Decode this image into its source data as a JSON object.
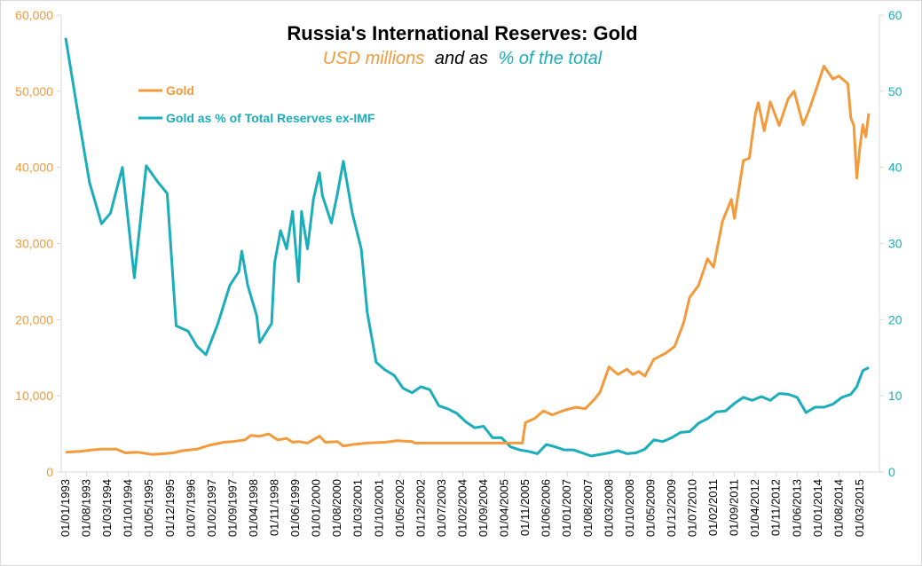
{
  "colors": {
    "gold": "#f39a3c",
    "pct": "#1aaebb",
    "axis": "#d9d9d9"
  },
  "chart_data": {
    "type": "line",
    "title": "Russia's International Reserves: Gold",
    "subtitle": {
      "part1": "USD millions",
      "part2": "and as",
      "part3": "% of the total"
    },
    "left_axis": {
      "min": 0,
      "max": 60000,
      "ticks": [
        "0",
        "10,000",
        "20,000",
        "30,000",
        "40,000",
        "50,000",
        "60,000"
      ]
    },
    "right_axis": {
      "min": 0,
      "max": 60,
      "ticks": [
        "0",
        "10",
        "20",
        "30",
        "40",
        "50",
        "60"
      ]
    },
    "x_axis": {
      "start": "1993-01",
      "end": "2015-06",
      "ticks": [
        "01/01/1993",
        "01/08/1993",
        "01/03/1994",
        "01/10/1994",
        "01/05/1995",
        "01/12/1995",
        "01/07/1996",
        "01/02/1997",
        "01/09/1997",
        "01/04/1998",
        "01/11/1998",
        "01/06/1999",
        "01/01/2000",
        "01/08/2000",
        "01/03/2001",
        "01/10/2001",
        "01/05/2002",
        "01/12/2002",
        "01/07/2003",
        "01/02/2004",
        "01/09/2004",
        "01/04/2005",
        "01/11/2005",
        "01/06/2006",
        "01/01/2007",
        "01/08/2007",
        "01/03/2008",
        "01/10/2008",
        "01/05/2009",
        "01/12/2009",
        "01/07/2010",
        "01/02/2011",
        "01/09/2011",
        "01/04/2012",
        "01/11/2012",
        "01/06/2013",
        "01/01/2014",
        "01/08/2014",
        "01/03/2015"
      ]
    },
    "legend": {
      "placement": "top-left"
    },
    "series": [
      {
        "name": "Gold",
        "axis": "left",
        "points": [
          [
            "1993-01",
            2600
          ],
          [
            "1993-06",
            2700
          ],
          [
            "1993-10",
            2900
          ],
          [
            "1994-01",
            3000
          ],
          [
            "1994-06",
            3000
          ],
          [
            "1994-09",
            2500
          ],
          [
            "1995-01",
            2600
          ],
          [
            "1995-06",
            2300
          ],
          [
            "1995-10",
            2400
          ],
          [
            "1996-01",
            2500
          ],
          [
            "1996-04",
            2800
          ],
          [
            "1996-09",
            3000
          ],
          [
            "1997-01",
            3500
          ],
          [
            "1997-06",
            3900
          ],
          [
            "1997-09",
            4000
          ],
          [
            "1998-01",
            4200
          ],
          [
            "1998-03",
            4800
          ],
          [
            "1998-06",
            4700
          ],
          [
            "1998-09",
            5000
          ],
          [
            "1998-12",
            4200
          ],
          [
            "1999-03",
            4400
          ],
          [
            "1999-05",
            3900
          ],
          [
            "1999-07",
            4000
          ],
          [
            "1999-10",
            3800
          ],
          [
            "2000-02",
            4700
          ],
          [
            "2000-04",
            3900
          ],
          [
            "2000-08",
            4000
          ],
          [
            "2000-10",
            3400
          ],
          [
            "2001-01",
            3600
          ],
          [
            "2001-06",
            3800
          ],
          [
            "2001-12",
            3900
          ],
          [
            "2002-04",
            4100
          ],
          [
            "2002-09",
            4000
          ],
          [
            "2002-10",
            3800
          ],
          [
            "2003-06",
            3800
          ],
          [
            "2004-06",
            3800
          ],
          [
            "2005-01",
            3800
          ],
          [
            "2005-09",
            3800
          ],
          [
            "2005-10",
            3800
          ],
          [
            "2005-11",
            6500
          ],
          [
            "2006-02",
            7000
          ],
          [
            "2006-05",
            8000
          ],
          [
            "2006-08",
            7500
          ],
          [
            "2006-12",
            8100
          ],
          [
            "2007-04",
            8500
          ],
          [
            "2007-07",
            8300
          ],
          [
            "2007-10",
            9500
          ],
          [
            "2007-12",
            10500
          ],
          [
            "2008-03",
            13800
          ],
          [
            "2008-06",
            12800
          ],
          [
            "2008-09",
            13500
          ],
          [
            "2008-11",
            12800
          ],
          [
            "2009-01",
            13200
          ],
          [
            "2009-03",
            12600
          ],
          [
            "2009-06",
            14800
          ],
          [
            "2009-10",
            15600
          ],
          [
            "2010-01",
            16500
          ],
          [
            "2010-04",
            19600
          ],
          [
            "2010-06",
            22900
          ],
          [
            "2010-09",
            24500
          ],
          [
            "2010-12",
            28000
          ],
          [
            "2011-02",
            26900
          ],
          [
            "2011-05",
            32900
          ],
          [
            "2011-08",
            35800
          ],
          [
            "2011-09",
            33300
          ],
          [
            "2011-12",
            40900
          ],
          [
            "2012-02",
            41200
          ],
          [
            "2012-04",
            47000
          ],
          [
            "2012-05",
            48500
          ],
          [
            "2012-07",
            44800
          ],
          [
            "2012-09",
            48600
          ],
          [
            "2012-12",
            45500
          ],
          [
            "2013-03",
            49000
          ],
          [
            "2013-05",
            50000
          ],
          [
            "2013-08",
            45600
          ],
          [
            "2013-10",
            47500
          ],
          [
            "2013-12",
            49800
          ],
          [
            "2014-03",
            53300
          ],
          [
            "2014-06",
            51600
          ],
          [
            "2014-08",
            52000
          ],
          [
            "2014-11",
            51000
          ],
          [
            "2014-12",
            46500
          ],
          [
            "2015-01",
            45500
          ],
          [
            "2015-02",
            38600
          ],
          [
            "2015-03",
            42500
          ],
          [
            "2015-04",
            45600
          ],
          [
            "2015-05",
            44000
          ],
          [
            "2015-06",
            47100
          ]
        ]
      },
      {
        "name": "Gold as % of Total Reserves ex-IMF",
        "axis": "right",
        "points": [
          [
            "1993-01",
            57
          ],
          [
            "1993-06",
            45
          ],
          [
            "1993-09",
            38
          ],
          [
            "1994-01",
            32.6
          ],
          [
            "1994-04",
            34
          ],
          [
            "1994-08",
            40
          ],
          [
            "1994-12",
            25.5
          ],
          [
            "1995-04",
            40.2
          ],
          [
            "1995-08",
            38
          ],
          [
            "1995-11",
            36.6
          ],
          [
            "1996-02",
            19.2
          ],
          [
            "1996-06",
            18.5
          ],
          [
            "1996-09",
            16.5
          ],
          [
            "1996-12",
            15.4
          ],
          [
            "1997-04",
            19.5
          ],
          [
            "1997-08",
            24.5
          ],
          [
            "1997-11",
            26.3
          ],
          [
            "1997-12",
            29
          ],
          [
            "1998-02",
            24.5
          ],
          [
            "1998-05",
            20.5
          ],
          [
            "1998-06",
            17
          ],
          [
            "1998-10",
            19.5
          ],
          [
            "1998-11",
            27.5
          ],
          [
            "1999-01",
            31.7
          ],
          [
            "1999-03",
            29.3
          ],
          [
            "1999-05",
            34.2
          ],
          [
            "1999-07",
            25
          ],
          [
            "1999-08",
            34.2
          ],
          [
            "1999-10",
            29.3
          ],
          [
            "1999-12",
            35.8
          ],
          [
            "2000-02",
            39.3
          ],
          [
            "2000-03",
            36.3
          ],
          [
            "2000-06",
            32.7
          ],
          [
            "2000-08",
            36.5
          ],
          [
            "2000-10",
            40.8
          ],
          [
            "2001-01",
            34
          ],
          [
            "2001-04",
            29.3
          ],
          [
            "2001-06",
            21
          ],
          [
            "2001-09",
            14.4
          ],
          [
            "2001-12",
            13.4
          ],
          [
            "2002-03",
            12.7
          ],
          [
            "2002-06",
            11
          ],
          [
            "2002-09",
            10.4
          ],
          [
            "2002-12",
            11.2
          ],
          [
            "2003-03",
            10.8
          ],
          [
            "2003-06",
            8.7
          ],
          [
            "2003-09",
            8.3
          ],
          [
            "2003-12",
            7.7
          ],
          [
            "2004-03",
            6.6
          ],
          [
            "2004-06",
            5.8
          ],
          [
            "2004-09",
            6.0
          ],
          [
            "2004-12",
            4.5
          ],
          [
            "2005-03",
            4.5
          ],
          [
            "2005-06",
            3.3
          ],
          [
            "2005-09",
            2.9
          ],
          [
            "2005-12",
            2.7
          ],
          [
            "2006-03",
            2.4
          ],
          [
            "2006-06",
            3.6
          ],
          [
            "2006-09",
            3.3
          ],
          [
            "2006-12",
            2.9
          ],
          [
            "2007-03",
            2.9
          ],
          [
            "2007-06",
            2.5
          ],
          [
            "2007-09",
            2.1
          ],
          [
            "2007-12",
            2.3
          ],
          [
            "2008-03",
            2.5
          ],
          [
            "2008-06",
            2.8
          ],
          [
            "2008-09",
            2.4
          ],
          [
            "2008-12",
            2.5
          ],
          [
            "2009-03",
            3.0
          ],
          [
            "2009-06",
            4.2
          ],
          [
            "2009-09",
            4.0
          ],
          [
            "2009-12",
            4.5
          ],
          [
            "2010-03",
            5.2
          ],
          [
            "2010-06",
            5.3
          ],
          [
            "2010-09",
            6.4
          ],
          [
            "2010-12",
            7.0
          ],
          [
            "2011-03",
            7.9
          ],
          [
            "2011-06",
            8.0
          ],
          [
            "2011-09",
            9.0
          ],
          [
            "2011-12",
            9.8
          ],
          [
            "2012-03",
            9.4
          ],
          [
            "2012-06",
            9.9
          ],
          [
            "2012-09",
            9.4
          ],
          [
            "2012-12",
            10.3
          ],
          [
            "2013-03",
            10.2
          ],
          [
            "2013-06",
            9.8
          ],
          [
            "2013-09",
            7.8
          ],
          [
            "2013-12",
            8.5
          ],
          [
            "2014-03",
            8.5
          ],
          [
            "2014-06",
            8.9
          ],
          [
            "2014-09",
            9.8
          ],
          [
            "2014-12",
            10.2
          ],
          [
            "2015-02",
            11.2
          ],
          [
            "2015-04",
            13.3
          ],
          [
            "2015-06",
            13.7
          ]
        ]
      }
    ]
  }
}
